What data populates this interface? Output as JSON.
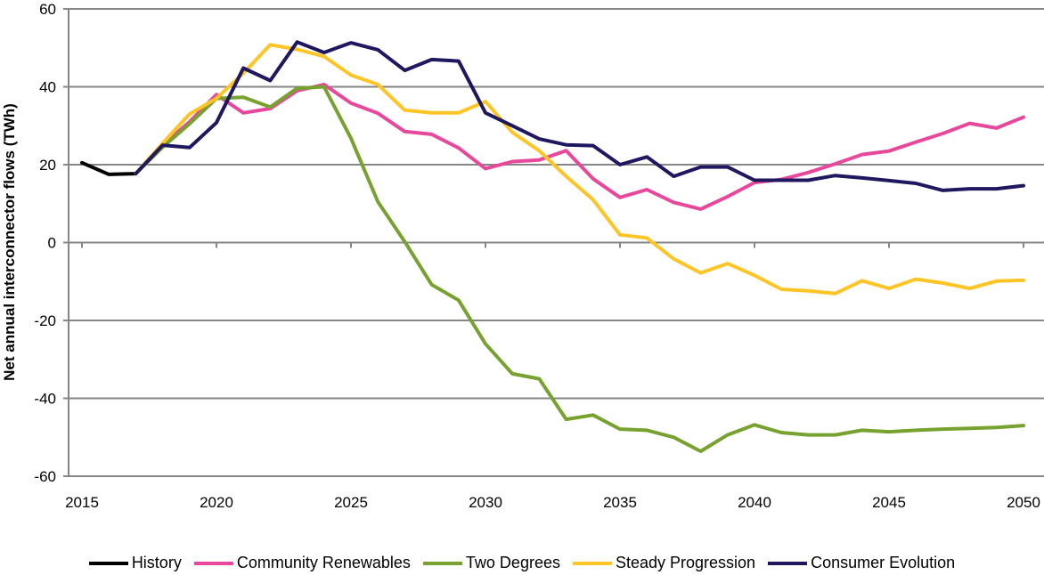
{
  "chart_data": {
    "type": "line",
    "title": "",
    "xlabel": "",
    "ylabel": "Net annual interconnector flows (TWh)",
    "xlim": [
      2015,
      2050
    ],
    "ylim": [
      -60,
      60
    ],
    "x_ticks": [
      "2015",
      "2020",
      "2025",
      "2030",
      "2035",
      "2040",
      "2045",
      "2050"
    ],
    "y_ticks": [
      "60",
      "40",
      "20",
      "0",
      "-20",
      "-40",
      "-60"
    ],
    "grid": "horizontal",
    "legend_position": "bottom",
    "series": [
      {
        "name": "History",
        "color": "#000000",
        "x": [
          2015,
          2016,
          2017
        ],
        "values": [
          20.5,
          17.5,
          17.7
        ]
      },
      {
        "name": "Community Renewables",
        "color": "#e8489b",
        "x_start": 2017,
        "values": [
          17.7,
          25,
          31,
          38,
          33.3,
          34.4,
          39,
          40.6,
          35.8,
          33.2,
          28.5,
          27.8,
          24.3,
          19,
          20.8,
          21.2,
          23.6,
          16.4,
          11.6,
          13.6,
          10.3,
          8.6,
          11.8,
          15.4,
          16.2,
          18,
          20.2,
          22.6,
          23.5,
          25.8,
          28,
          30.6,
          29.4,
          32.2
        ]
      },
      {
        "name": "Two Degrees",
        "color": "#78a22f",
        "x_start": 2017,
        "values": [
          17.7,
          24.5,
          30.5,
          37,
          37.3,
          34.8,
          39.6,
          40,
          26.8,
          10.5,
          0.2,
          -10.8,
          -14.8,
          -26,
          -33.7,
          -35,
          -45.4,
          -44.3,
          -47.9,
          -48.2,
          -50,
          -53.6,
          -49.4,
          -46.8,
          -48.8,
          -49.4,
          -49.4,
          -48.2,
          -48.6,
          -48.2,
          -47.9,
          -47.7,
          -47.5,
          -47
        ]
      },
      {
        "name": "Steady Progression",
        "color": "#ffc425",
        "x_start": 2017,
        "values": [
          17.7,
          25.5,
          33,
          37,
          43.5,
          50.8,
          49.6,
          47.8,
          43,
          40.6,
          34,
          33.3,
          33.3,
          36.2,
          28.3,
          23.6,
          17,
          11,
          2,
          1.2,
          -4.2,
          -7.8,
          -5.4,
          -8.4,
          -12,
          -12.4,
          -13.1,
          -9.8,
          -11.8,
          -9.4,
          -10.4,
          -11.8,
          -9.9,
          -9.7
        ]
      },
      {
        "name": "Consumer Evolution",
        "color": "#1f1760",
        "x_start": 2017,
        "values": [
          17.7,
          25,
          24.4,
          30.8,
          44.8,
          41.6,
          51.5,
          48.8,
          51.3,
          49.5,
          44.2,
          47,
          46.6,
          33.3,
          30,
          26.6,
          25.1,
          24.9,
          20,
          22,
          17,
          19.4,
          19.4,
          16,
          16,
          16,
          17.2,
          16.6,
          15.9,
          15.2,
          13.4,
          13.8,
          13.8,
          14.6
        ]
      }
    ]
  }
}
